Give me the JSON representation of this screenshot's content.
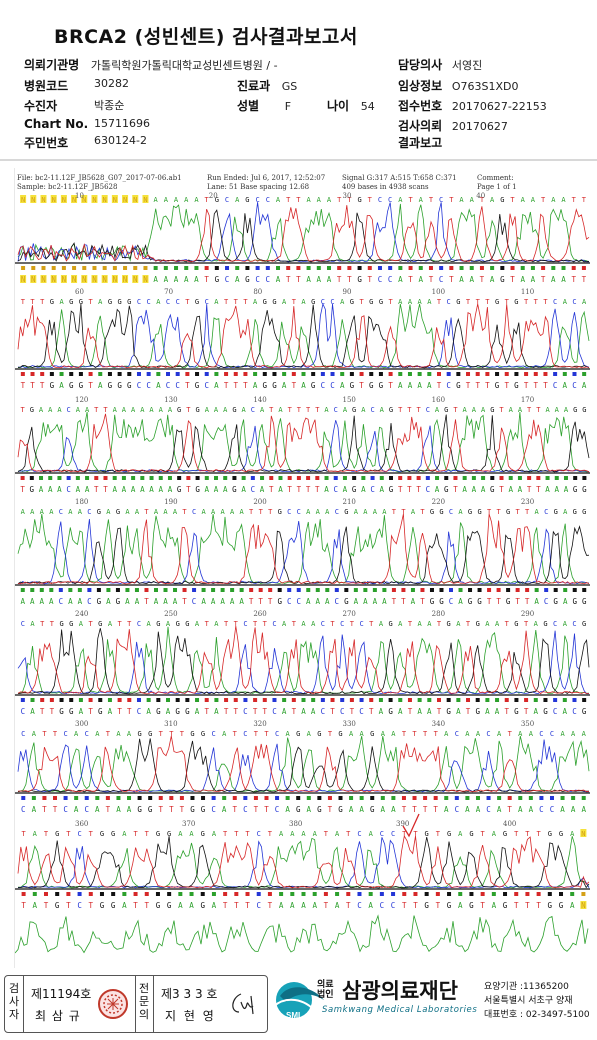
{
  "title": "BRCA2 (성빈센트) 검사결과보고서",
  "patient": {
    "institution_label": "의뢰기관명",
    "institution_value": "가톨릭학원가톨릭대학교성빈센트병원 / -",
    "hospital_code_label": "병원코드",
    "hospital_code_value": "30282",
    "department_label": "진료과",
    "department_value": "GS",
    "examinee_label": "수진자",
    "examinee_value": "박종순",
    "sex_label": "성별",
    "sex_value": "F",
    "age_label": "나이",
    "age_value": "54",
    "chart_label": "Chart No.",
    "chart_value": "15711696",
    "rrn_label": "주민번호",
    "rrn_value": "630124-2",
    "doctor_label": "담당의사",
    "doctor_value": "서영진",
    "clinical_label": "임상정보",
    "clinical_value": "O763S1XD0",
    "reception_label": "접수번호",
    "reception_value": "20170627-22153",
    "request_label": "검사의뢰",
    "request_value": "20170627",
    "report_label": "결과보고",
    "report_value": ""
  },
  "run_info": {
    "file": "File: bc2-11.12F_JB5628_G07_2017-07-06.ab1",
    "sample": "Sample: bc2-11.12F_JB5628",
    "run_ended": "Run Ended: Jul 6, 2017, 12:52:07",
    "lane": "Lane: 51   Base spacing 12.68",
    "signal": "Signal G:317 A:515 T:658 C:371",
    "bases": "409 bases in 4938 scans",
    "comment": "Comment:",
    "page": "Page 1 of 1"
  },
  "chromatogram": {
    "colors": {
      "A": "#2ca02c",
      "C": "#2436d6",
      "G": "#111111",
      "T": "#d62728",
      "N": "#d4a017"
    },
    "panels": [
      {
        "positions": [
          "10",
          "20",
          "30",
          "40"
        ],
        "sequence": "NNNNNNNNNNNNNAAAAATGCAGCCATTAAATTGTCCATATCTAATAGTAATAATT"
      },
      {
        "positions": [
          "60",
          "70",
          "80",
          "90",
          "100",
          "110"
        ],
        "sequence": "TTTGAGGTAGGGCCACCTGCATTTAGGATAGCCAGTGGTAAAATCGTTTGTGTTTCACA"
      },
      {
        "positions": [
          "120",
          "130",
          "140",
          "150",
          "160",
          "170"
        ],
        "sequence": "TGAAACAATTAAAAAAAGTGAAAGACATATTTTACAGACAGTTTCAGTAAAGTAATTAAAGG"
      },
      {
        "positions": [
          "180",
          "190",
          "200",
          "210",
          "220",
          "230"
        ],
        "sequence": "AAAACAACGAGAATAAATCAAAAATTTGCCAAACGAAAATTATGGCAGGTTGTTACGAGG"
      },
      {
        "positions": [
          "240",
          "250",
          "260",
          "270",
          "280",
          "290"
        ],
        "sequence": "CATTGGATGATTCAGAGGATATTCTTCATAACTCTCTAGATAATGATGAATGTAGCACG"
      },
      {
        "positions": [
          "300",
          "310",
          "320",
          "330",
          "340",
          "350"
        ],
        "sequence": "CATTCACATAAGGTTTGGCATCTTCAGAGTGAAGAATTTTACAACATAACCAAA"
      },
      {
        "positions": [
          "360",
          "370",
          "380",
          "390",
          "400"
        ],
        "sequence": "TATGTCTGGATTGGAAGATTTCTAAAATATCACCTTGTGAGTAGTTTGGAN"
      }
    ]
  },
  "footer": {
    "box1_vertical": "검사자",
    "box1_number": "제11194호",
    "box1_name": "최 삼 규",
    "box2_vertical": "전문의",
    "box2_number": "제3 3 3 호",
    "box2_name": "지 현 영",
    "lab_badge": "SML",
    "lab_type": "의료법인",
    "lab_name": "삼광의료재단",
    "lab_english": "Samkwang Medical Laboratories",
    "lab_id": "요양기관 :11365200",
    "lab_address": "서울특별시 서초구 양재",
    "lab_phone": "대표번호 : 02-3497-5100"
  }
}
